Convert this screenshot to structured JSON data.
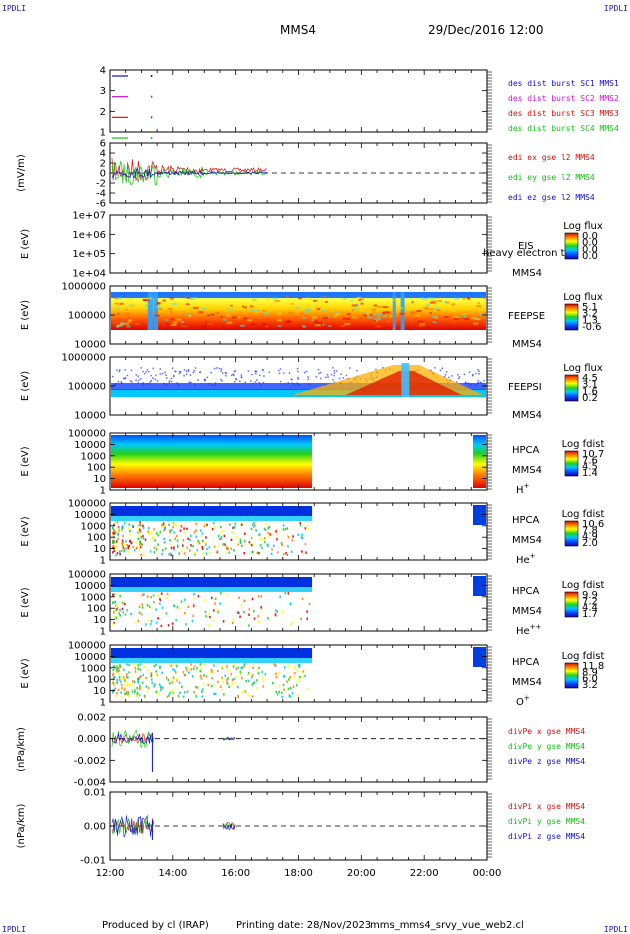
{
  "corner_labels": [
    "IPDLI",
    "IPDLI",
    "IPDLI",
    "IPDLI"
  ],
  "header": {
    "mission": "MMS4",
    "datetime": "29/Dec/2016 12:00"
  },
  "footer": {
    "produced_by": "Produced by cl (IRAP)",
    "printing_date": "Printing date: 28/Nov/2023",
    "filename": "mms_mms4_srvy_vue_web2.cl"
  },
  "colors": {
    "blue": "#1010c8",
    "red": "#d41010",
    "green": "#10c010",
    "magenta": "#d010d0"
  },
  "chart_data": [
    {
      "name": "burst",
      "type": "line",
      "ytick_labels": [
        "4",
        "3",
        "2",
        "1"
      ],
      "series": [
        {
          "name": "des dist burst SC1 MMS1",
          "level": 4,
          "color": "#1010c8"
        },
        {
          "name": "des dist burst SC2 MMS2",
          "level": 3,
          "color": "#d010d0"
        },
        {
          "name": "des dist burst SC3 MMS3",
          "level": 2,
          "color": "#d41010"
        },
        {
          "name": "des dist burst SC4 MMS4",
          "level": 1,
          "color": "#10c010"
        }
      ]
    },
    {
      "name": "edi",
      "type": "line",
      "ylabel": "(mV/m)",
      "ytick_labels": [
        "6",
        "4",
        "2",
        "0",
        "-2",
        "-4",
        "-6"
      ],
      "series": [
        {
          "name": "edi ex gse l2 MMS4",
          "color": "#d41010"
        },
        {
          "name": "edi ey gse l2 MMS4",
          "color": "#10c010"
        },
        {
          "name": "edi ez gse l2 MMS4",
          "color": "#1010c8"
        }
      ]
    },
    {
      "name": "eis",
      "type": "heatmap",
      "ylabel": "E (eV)",
      "ytick_labels": [
        "1e+07",
        "1e+06",
        "1e+05",
        "1e+04"
      ],
      "right_label_1": "EIS",
      "right_label_2": "MMS4",
      "right_label_3": "heavy electron tof",
      "cbar_title": "Log flux",
      "cbar_ticks": [
        "0.0",
        "0.0",
        "0.0",
        "0.0"
      ]
    },
    {
      "name": "feepse",
      "type": "heatmap",
      "ylabel": "E (eV)",
      "ytick_labels": [
        "1000000",
        "100000",
        "10000"
      ],
      "right_label_1": "FEEPSE",
      "right_label_2": "MMS4",
      "cbar_title": "Log flux",
      "cbar_ticks": [
        "5.1",
        "3.2",
        "1.3",
        "-0.6"
      ]
    },
    {
      "name": "feepsi",
      "type": "heatmap",
      "ylabel": "E (eV)",
      "ytick_labels": [
        "1000000",
        "100000",
        "10000"
      ],
      "right_label_1": "FEEPSI",
      "right_label_2": "MMS4",
      "cbar_title": "Log flux",
      "cbar_ticks": [
        "4.5",
        "3.1",
        "1.6",
        "0.2"
      ]
    },
    {
      "name": "hpca_h",
      "type": "heatmap",
      "ylabel": "E (eV)",
      "ytick_labels": [
        "100000",
        "10000",
        "1000",
        "100",
        "10",
        "1"
      ],
      "right_label_1": "HPCA",
      "right_label_2": "MMS4",
      "species": "H",
      "species_sup": "+",
      "cbar_title": "Log fdist",
      "cbar_ticks": [
        "10.7",
        "7.6",
        "4.5",
        "1.4"
      ]
    },
    {
      "name": "hpca_he",
      "type": "heatmap",
      "ylabel": "E (eV)",
      "ytick_labels": [
        "100000",
        "10000",
        "1000",
        "100",
        "10",
        "1"
      ],
      "right_label_1": "HPCA",
      "right_label_2": "MMS4",
      "species": "He",
      "species_sup": "+",
      "cbar_title": "Log fdist",
      "cbar_ticks": [
        "10.6",
        "7.8",
        "4.9",
        "2.0"
      ]
    },
    {
      "name": "hpca_hepp",
      "type": "heatmap",
      "ylabel": "E (eV)",
      "ytick_labels": [
        "100000",
        "10000",
        "1000",
        "100",
        "10",
        "1"
      ],
      "right_label_1": "HPCA",
      "right_label_2": "MMS4",
      "species": "He",
      "species_sup": "++",
      "cbar_title": "Log fdist",
      "cbar_ticks": [
        "9.9",
        "7.2",
        "4.4",
        "1.7"
      ]
    },
    {
      "name": "hpca_o",
      "type": "heatmap",
      "ylabel": "E (eV)",
      "ytick_labels": [
        "100000",
        "10000",
        "1000",
        "100",
        "10",
        "1"
      ],
      "right_label_1": "HPCA",
      "right_label_2": "MMS4",
      "species": "O",
      "species_sup": "+",
      "cbar_title": "Log fdist",
      "cbar_ticks": [
        "11.8",
        "8.9",
        "6.0",
        "3.2"
      ]
    },
    {
      "name": "divpe",
      "type": "line",
      "ylabel": "(nPa/km)",
      "ytick_labels": [
        "0.002",
        "0.000",
        "-0.002",
        "-0.004"
      ],
      "series": [
        {
          "name": "divPe x gse MMS4",
          "color": "#d41010"
        },
        {
          "name": "divPe y gse MMS4",
          "color": "#10c010"
        },
        {
          "name": "divPe z gse MMS4",
          "color": "#1010c8"
        }
      ]
    },
    {
      "name": "divpi",
      "type": "line",
      "ylabel": "(nPa/km)",
      "ytick_labels": [
        "0.01",
        "0.00",
        "-0.01"
      ],
      "series": [
        {
          "name": "divPi x gse MMS4",
          "color": "#d41010"
        },
        {
          "name": "divPi y gse MMS4",
          "color": "#10c010"
        },
        {
          "name": "divPi z gse MMS4",
          "color": "#1010c8"
        }
      ]
    }
  ],
  "x_axis": {
    "range": [
      "12:00",
      "00:00"
    ],
    "tick_labels": [
      "12:00",
      "14:00",
      "16:00",
      "18:00",
      "20:00",
      "22:00",
      "00:00"
    ]
  }
}
